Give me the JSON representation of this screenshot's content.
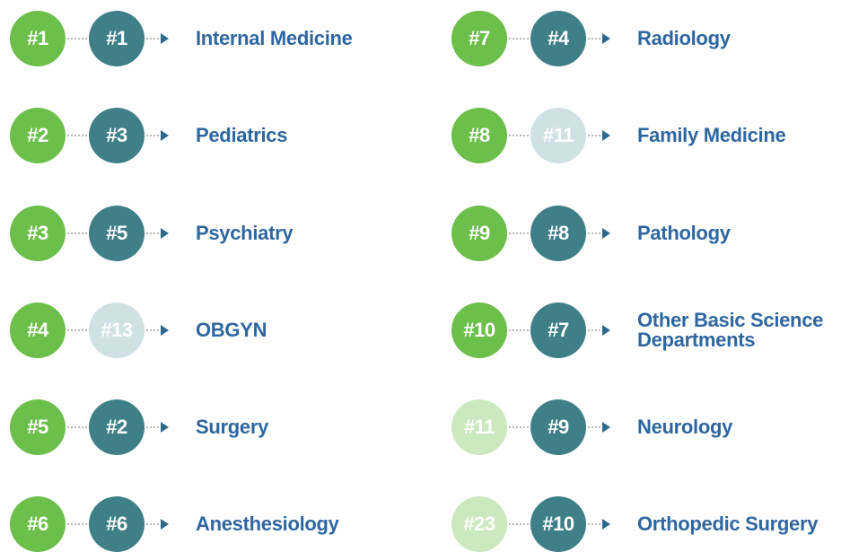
{
  "items": [
    {
      "left": "#1",
      "left_color": "#6cbf4a",
      "right": "#1",
      "right_color": "#3f7f87",
      "label": "Internal Medicine"
    },
    {
      "left": "#2",
      "left_color": "#6cbf4a",
      "right": "#3",
      "right_color": "#3f7f87",
      "label": "Pediatrics"
    },
    {
      "left": "#3",
      "left_color": "#6cbf4a",
      "right": "#5",
      "right_color": "#3f7f87",
      "label": "Psychiatry"
    },
    {
      "left": "#4",
      "left_color": "#6cbf4a",
      "right": "#13",
      "right_color": "#cfe1e3",
      "label": "OBGYN"
    },
    {
      "left": "#5",
      "left_color": "#6cbf4a",
      "right": "#2",
      "right_color": "#3f7f87",
      "label": "Surgery"
    },
    {
      "left": "#6",
      "left_color": "#6cbf4a",
      "right": "#6",
      "right_color": "#3f7f87",
      "label": "Anesthesiology"
    },
    {
      "left": "#7",
      "left_color": "#6cbf4a",
      "right": "#4",
      "right_color": "#3f7f87",
      "label": "Radiology"
    },
    {
      "left": "#8",
      "left_color": "#6cbf4a",
      "right": "#11",
      "right_color": "#cfe1e3",
      "label": "Family Medicine"
    },
    {
      "left": "#9",
      "left_color": "#6cbf4a",
      "right": "#8",
      "right_color": "#3f7f87",
      "label": "Pathology"
    },
    {
      "left": "#10",
      "left_color": "#6cbf4a",
      "right": "#7",
      "right_color": "#3f7f87",
      "label": "Other Basic Science Departments"
    },
    {
      "left": "#11",
      "left_color": "#cbe8be",
      "right": "#9",
      "right_color": "#3f7f87",
      "label": "Neurology"
    },
    {
      "left": "#23",
      "left_color": "#cbe8be",
      "right": "#10",
      "right_color": "#3f7f87",
      "label": "Orthopedic Surgery"
    }
  ]
}
